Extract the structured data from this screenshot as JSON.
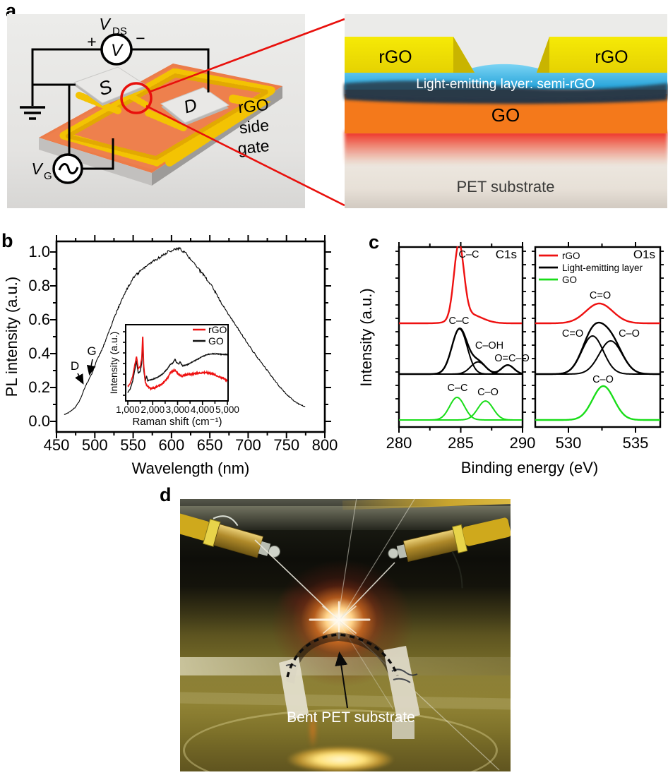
{
  "figure": {
    "panel_a": {
      "label": "a",
      "circuit": {
        "vds_main": "V",
        "vds_sub": "DS",
        "plus": "+",
        "minus": "−",
        "meter": "V",
        "source": "S",
        "drain": "D",
        "vg_main": "V",
        "vg_sub": "G",
        "gate_lines": [
          "rGO",
          "side",
          "gate"
        ]
      },
      "cross_section": {
        "left_electrode": "rGO",
        "right_electrode": "rGO",
        "light_layer": "Light-emitting layer: semi-rGO",
        "go": "GO",
        "substrate": "PET substrate",
        "colors": {
          "electrode": "#f2e204",
          "light_layer": "#3ab0e8",
          "go": "#f4791b",
          "glow": "#ee2013"
        }
      }
    },
    "panel_b": {
      "label": "b"
    },
    "panel_c": {
      "label": "c"
    },
    "panel_d": {
      "label": "d",
      "annotation": "Bent PET substrate"
    }
  },
  "chart_data": [
    {
      "id": "pl_spectrum",
      "type": "line",
      "xlabel": "Wavelength (nm)",
      "ylabel": "PL intensity (a.u.)",
      "xlim": [
        450,
        800
      ],
      "ylim": [
        0,
        1.05
      ],
      "grid": false,
      "legend_position": "none",
      "xticks": [
        "450",
        "500",
        "550",
        "600",
        "650",
        "700",
        "750",
        "800"
      ],
      "yticks": [
        "0.0",
        "0.2",
        "0.4",
        "0.6",
        "0.8",
        "1.0"
      ],
      "annotations": [
        {
          "text": "D",
          "x": 485,
          "y": 0.21
        },
        {
          "text": "G",
          "x": 492,
          "y": 0.25
        }
      ],
      "series": [
        {
          "name": "PL",
          "color": "#000000",
          "x": [
            460,
            465,
            470,
            475,
            480,
            485,
            488,
            492,
            496,
            500,
            505,
            510,
            515,
            520,
            525,
            530,
            535,
            540,
            545,
            550,
            555,
            560,
            565,
            570,
            575,
            580,
            585,
            590,
            595,
            600,
            605,
            610,
            615,
            620,
            625,
            630,
            635,
            640,
            645,
            650,
            655,
            660,
            665,
            670,
            675,
            680,
            685,
            690,
            695,
            700,
            705,
            710,
            715,
            720,
            725,
            730,
            735,
            740,
            745,
            750,
            755,
            760,
            765,
            770,
            775
          ],
          "y": [
            0.04,
            0.05,
            0.065,
            0.085,
            0.12,
            0.175,
            0.21,
            0.245,
            0.28,
            0.33,
            0.385,
            0.43,
            0.49,
            0.55,
            0.61,
            0.665,
            0.715,
            0.765,
            0.805,
            0.845,
            0.87,
            0.89,
            0.91,
            0.925,
            0.94,
            0.955,
            0.97,
            0.985,
            1.0,
            1.01,
            1.02,
            1.02,
            1.005,
            0.985,
            0.955,
            0.93,
            0.9,
            0.875,
            0.845,
            0.815,
            0.78,
            0.74,
            0.7,
            0.665,
            0.63,
            0.595,
            0.56,
            0.525,
            0.49,
            0.455,
            0.42,
            0.39,
            0.36,
            0.33,
            0.3,
            0.27,
            0.24,
            0.21,
            0.185,
            0.16,
            0.14,
            0.12,
            0.105,
            0.095,
            0.085
          ]
        }
      ]
    },
    {
      "id": "raman_inset",
      "type": "line",
      "xlabel": "Raman shift (cm⁻¹)",
      "ylabel": "Intensity (a.u.)",
      "xlim": [
        1000,
        5000
      ],
      "grid": false,
      "legend_position": "top-right",
      "xticks": [
        "1,000",
        "2,000",
        "3,000",
        "4,000",
        "5,000"
      ],
      "series": [
        {
          "name": "rGO",
          "color": "#ee1111",
          "x": [
            1000,
            1100,
            1200,
            1280,
            1350,
            1420,
            1500,
            1560,
            1600,
            1640,
            1700,
            1800,
            1900,
            2000,
            2100,
            2200,
            2400,
            2600,
            2700,
            2800,
            2900,
            3000,
            3100,
            3200,
            3400,
            3600,
            3800,
            4000,
            4200,
            4400,
            4600,
            4800,
            5000
          ],
          "y": [
            0.17,
            0.22,
            0.33,
            0.5,
            0.62,
            0.44,
            0.47,
            0.6,
            0.95,
            0.5,
            0.24,
            0.17,
            0.15,
            0.15,
            0.16,
            0.17,
            0.22,
            0.3,
            0.38,
            0.4,
            0.42,
            0.37,
            0.34,
            0.33,
            0.35,
            0.36,
            0.37,
            0.38,
            0.38,
            0.36,
            0.33,
            0.3,
            0.26
          ]
        },
        {
          "name": "GO",
          "color": "#111111",
          "x": [
            1000,
            1100,
            1200,
            1280,
            1350,
            1420,
            1500,
            1560,
            1600,
            1640,
            1700,
            1750,
            1800,
            1900,
            2000,
            2200,
            2400,
            2600,
            2700,
            2800,
            2900,
            2950,
            3050,
            3100,
            3200,
            3400,
            3600,
            3800,
            4000,
            4200,
            4400,
            4600,
            4800,
            5000
          ],
          "y": [
            0.08,
            0.14,
            0.26,
            0.42,
            0.55,
            0.37,
            0.4,
            0.52,
            0.82,
            0.42,
            0.25,
            0.33,
            0.26,
            0.27,
            0.28,
            0.31,
            0.36,
            0.44,
            0.5,
            0.52,
            0.58,
            0.53,
            0.51,
            0.54,
            0.48,
            0.5,
            0.54,
            0.58,
            0.62,
            0.65,
            0.66,
            0.66,
            0.65,
            0.65
          ]
        }
      ]
    },
    {
      "id": "xps_c1s",
      "type": "line",
      "panel_label": "C1s",
      "xlabel": "Binding energy (eV)",
      "ylabel": "Intensity (a.u.)",
      "xlim": [
        280,
        290
      ],
      "xticks": [
        "280",
        "285",
        "290"
      ],
      "xtick_values": [
        280,
        285,
        290
      ],
      "series": [
        {
          "name": "rGO",
          "color": "#ee1111",
          "row": 0,
          "scale": 105,
          "draw_components": false,
          "peaks": [
            {
              "label": "C–C",
              "center": 284.85,
              "height": 1.0,
              "width": 0.4
            },
            {
              "label": "",
              "center": 285.7,
              "height": 0.12,
              "width": 1.0
            }
          ]
        },
        {
          "name": "Light-emitting layer",
          "color": "#000000",
          "row": 1,
          "scale": 64,
          "draw_components": true,
          "peaks": [
            {
              "label": "C–C",
              "center": 284.9,
              "height": 1.0,
              "width": 0.62
            },
            {
              "label": "C–OH",
              "center": 286.4,
              "height": 0.27,
              "width": 0.6
            },
            {
              "label": "O=C–O",
              "center": 288.8,
              "height": 0.2,
              "width": 0.5
            }
          ]
        },
        {
          "name": "GO",
          "color": "#19dd19",
          "row": 2,
          "scale": 32,
          "draw_components": true,
          "draw_envelope": false,
          "peaks": [
            {
              "label": "C–C",
              "center": 284.7,
              "height": 1.0,
              "width": 0.6
            },
            {
              "label": "C–O",
              "center": 287.0,
              "height": 0.84,
              "width": 0.62
            }
          ]
        }
      ]
    },
    {
      "id": "xps_o1s",
      "type": "line",
      "panel_label": "O1s",
      "xlabel": "Binding energy (eV)",
      "ylabel": "Intensity (a.u.)",
      "xlim": [
        527.5,
        536.85
      ],
      "xticks": [
        "530",
        "535"
      ],
      "xtick_values": [
        530,
        535
      ],
      "legend": [
        "rGO",
        "Light-emitting layer",
        "GO"
      ],
      "series": [
        {
          "name": "rGO",
          "color": "#ee1111",
          "row": 0,
          "scale": 28,
          "draw_components": false,
          "peaks": [
            {
              "label": "C=O",
              "center": 532.3,
              "height": 1.0,
              "width": 1.0
            }
          ]
        },
        {
          "name": "Light-emitting layer",
          "color": "#000000",
          "row": 1,
          "scale": 54,
          "draw_components": true,
          "peaks": [
            {
              "label": "C=O",
              "center": 531.8,
              "height": 1.0,
              "width": 0.8
            },
            {
              "label": "C–O",
              "center": 533.15,
              "height": 0.87,
              "width": 0.85
            }
          ]
        },
        {
          "name": "GO",
          "color": "#19dd19",
          "row": 2,
          "scale": 48,
          "draw_components": false,
          "peaks": [
            {
              "label": "C–O",
              "center": 532.6,
              "height": 1.0,
              "width": 0.8
            }
          ]
        }
      ]
    }
  ]
}
